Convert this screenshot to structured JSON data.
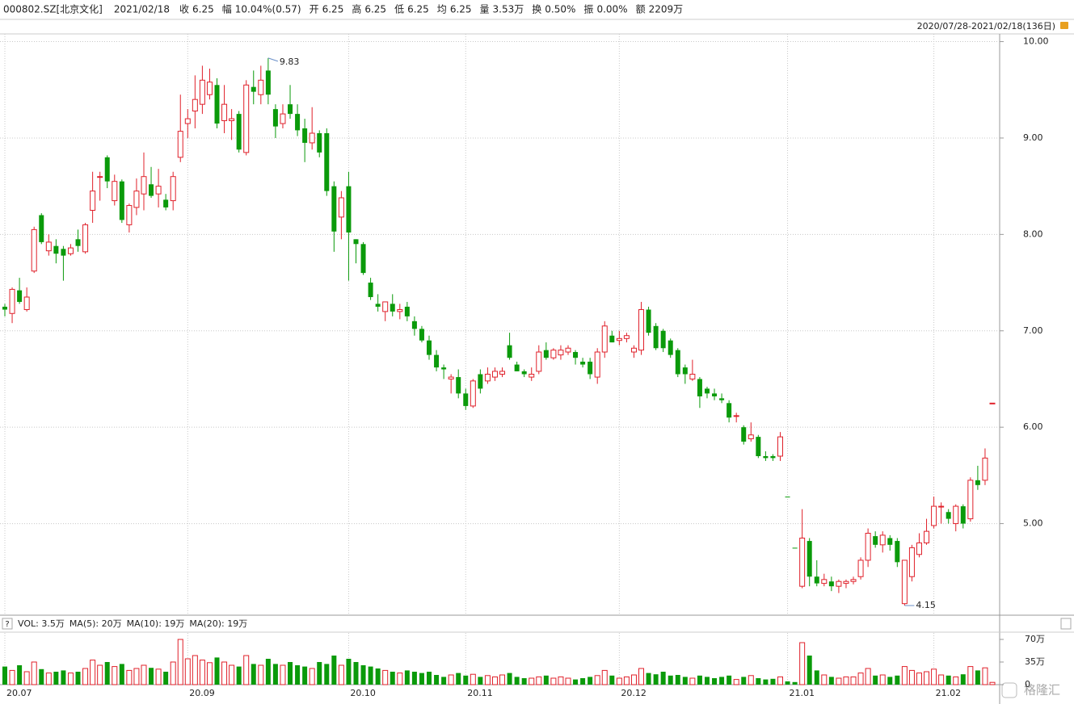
{
  "header": {
    "code": "000802.SZ[北京文化]",
    "date": "2021/02/18",
    "stats": [
      {
        "label": "收",
        "value": "6.25"
      },
      {
        "label": "幅",
        "value": "10.04%(0.57)"
      },
      {
        "label": "开",
        "value": "6.25"
      },
      {
        "label": "高",
        "value": "6.25"
      },
      {
        "label": "低",
        "value": "6.25"
      },
      {
        "label": "均",
        "value": "6.25"
      },
      {
        "label": "量",
        "value": "3.53万"
      },
      {
        "label": "换",
        "value": "0.50%"
      },
      {
        "label": "振",
        "value": "0.00%"
      },
      {
        "label": "额",
        "value": "2209万"
      }
    ],
    "range": "2020/07/28-2021/02/18(136日)",
    "watermark": "格隆汇"
  },
  "chart_data": {
    "type": "candlestick",
    "up_color": "#e0202a",
    "down_color": "#0a9a0a",
    "grid": true,
    "categories": [
      "20.07",
      null,
      null,
      null,
      null,
      null,
      null,
      null,
      null,
      null,
      null,
      null,
      null,
      null,
      null,
      null,
      null,
      null,
      null,
      null,
      null,
      null,
      null,
      null,
      null,
      "20.09",
      null,
      null,
      null,
      null,
      null,
      null,
      null,
      null,
      null,
      null,
      null,
      null,
      null,
      null,
      null,
      null,
      null,
      null,
      null,
      null,
      null,
      "20.10",
      null,
      null,
      null,
      null,
      null,
      null,
      null,
      null,
      null,
      null,
      null,
      null,
      null,
      null,
      null,
      "20.11",
      null,
      null,
      null,
      null,
      null,
      null,
      null,
      null,
      null,
      null,
      null,
      null,
      null,
      null,
      null,
      null,
      null,
      null,
      null,
      null,
      "20.12",
      null,
      null,
      null,
      null,
      null,
      null,
      null,
      null,
      null,
      null,
      null,
      null,
      null,
      null,
      null,
      null,
      null,
      null,
      null,
      null,
      null,
      null,
      "21.01",
      null,
      null,
      null,
      null,
      null,
      null,
      null,
      null,
      null,
      null,
      null,
      null,
      null,
      null,
      null,
      null,
      null,
      null,
      null,
      "21.02",
      null,
      null,
      null,
      null,
      null,
      null,
      null,
      null
    ],
    "open": [
      7.25,
      7.18,
      7.42,
      7.22,
      7.62,
      8.2,
      7.83,
      7.88,
      7.85,
      7.8,
      7.95,
      7.82,
      8.25,
      8.6,
      8.8,
      8.35,
      8.55,
      8.1,
      8.28,
      8.42,
      8.52,
      8.42,
      8.36,
      8.35,
      8.8,
      9.15,
      9.28,
      9.35,
      9.45,
      9.55,
      9.18,
      9.18,
      9.25,
      8.85,
      9.53,
      9.45,
      9.7,
      9.3,
      9.15,
      9.35,
      9.25,
      9.1,
      8.95,
      9.05,
      9.05,
      8.5,
      8.18,
      8.5,
      7.95,
      7.9,
      7.5,
      7.28,
      7.2,
      7.28,
      7.2,
      7.25,
      7.1,
      7.02,
      6.9,
      6.75,
      6.62,
      6.5,
      6.52,
      6.35,
      6.22,
      6.55,
      6.48,
      6.52,
      6.55,
      6.85,
      6.65,
      6.58,
      6.52,
      6.58,
      6.8,
      6.72,
      6.75,
      6.78,
      6.78,
      6.68,
      6.68,
      6.52,
      6.78,
      6.95,
      6.9,
      6.92,
      6.78,
      6.8,
      7.22,
      7.05,
      7.0,
      6.9,
      6.8,
      6.62,
      6.5,
      6.5,
      6.4,
      6.35,
      6.3,
      6.25,
      6.12,
      6.0,
      5.88,
      5.9,
      5.7,
      5.7,
      5.7,
      5.28,
      4.75,
      4.35,
      4.82,
      4.45,
      4.38,
      4.4,
      4.35,
      4.38,
      4.4,
      4.45,
      4.62,
      4.87,
      4.78,
      4.85,
      4.82,
      4.17,
      4.45,
      4.68,
      4.8,
      4.98,
      5.18,
      5.12,
      5.0,
      5.18,
      5.05,
      5.45,
      5.45,
      6.25
    ],
    "high": [
      7.28,
      7.45,
      7.55,
      7.45,
      8.08,
      8.22,
      8.0,
      7.95,
      7.88,
      7.9,
      8.05,
      8.12,
      8.65,
      8.65,
      8.82,
      8.62,
      8.57,
      8.32,
      8.58,
      8.85,
      8.7,
      8.68,
      8.42,
      8.65,
      9.45,
      9.3,
      9.65,
      9.75,
      9.72,
      9.62,
      9.55,
      9.3,
      9.28,
      9.6,
      9.7,
      9.75,
      9.83,
      9.35,
      9.35,
      9.55,
      9.35,
      9.2,
      9.32,
      9.08,
      9.1,
      8.55,
      8.45,
      8.65,
      7.95,
      7.92,
      7.55,
      7.38,
      7.3,
      7.38,
      7.28,
      7.3,
      7.15,
      7.05,
      6.95,
      6.8,
      6.65,
      6.55,
      6.6,
      6.4,
      6.5,
      6.6,
      6.62,
      6.62,
      6.62,
      6.98,
      6.68,
      6.6,
      6.62,
      6.85,
      6.88,
      6.82,
      6.85,
      6.85,
      6.8,
      6.72,
      6.72,
      6.82,
      7.1,
      7.0,
      7.0,
      6.98,
      6.85,
      7.3,
      7.25,
      7.08,
      7.02,
      6.92,
      6.82,
      6.65,
      6.7,
      6.52,
      6.42,
      6.4,
      6.35,
      6.28,
      6.15,
      6.02,
      6.05,
      5.92,
      5.75,
      5.72,
      5.95,
      5.28,
      4.75,
      5.15,
      4.85,
      4.62,
      4.48,
      4.45,
      4.42,
      4.42,
      4.45,
      4.65,
      4.95,
      4.92,
      4.92,
      4.88,
      4.85,
      4.62,
      4.78,
      4.9,
      5.05,
      5.28,
      5.22,
      5.15,
      5.2,
      5.2,
      5.48,
      5.6,
      5.78,
      6.25
    ],
    "low": [
      7.15,
      7.08,
      7.28,
      7.2,
      7.6,
      7.9,
      7.78,
      7.7,
      7.52,
      7.78,
      7.82,
      7.8,
      8.12,
      8.35,
      8.48,
      8.3,
      8.12,
      8.02,
      8.2,
      8.25,
      8.38,
      8.28,
      8.25,
      8.25,
      8.75,
      9.0,
      9.1,
      9.25,
      9.4,
      9.1,
      9.05,
      8.98,
      8.85,
      8.82,
      9.35,
      9.35,
      9.35,
      9.0,
      9.1,
      9.2,
      9.02,
      8.75,
      8.88,
      8.8,
      8.4,
      7.82,
      7.95,
      7.52,
      7.7,
      7.58,
      7.32,
      7.2,
      7.1,
      7.15,
      7.12,
      7.1,
      6.95,
      6.88,
      6.7,
      6.58,
      6.5,
      6.35,
      6.3,
      6.18,
      6.2,
      6.35,
      6.45,
      6.48,
      6.52,
      6.7,
      6.58,
      6.52,
      6.48,
      6.55,
      6.7,
      6.7,
      6.7,
      6.75,
      6.65,
      6.62,
      6.5,
      6.45,
      6.72,
      6.88,
      6.85,
      6.88,
      6.72,
      6.75,
      6.95,
      6.8,
      6.78,
      6.72,
      6.52,
      6.45,
      6.48,
      6.2,
      6.3,
      6.28,
      6.25,
      6.05,
      6.05,
      5.82,
      5.85,
      5.68,
      5.65,
      5.65,
      5.65,
      5.28,
      4.75,
      4.33,
      4.35,
      4.35,
      4.35,
      4.3,
      4.28,
      4.33,
      4.37,
      4.42,
      4.55,
      4.75,
      4.7,
      4.72,
      4.55,
      4.15,
      4.4,
      4.65,
      4.78,
      4.95,
      5.0,
      5.0,
      4.92,
      4.95,
      5.02,
      5.35,
      5.4,
      6.25
    ],
    "close": [
      7.22,
      7.43,
      7.3,
      7.35,
      8.05,
      7.92,
      7.92,
      7.8,
      7.78,
      7.86,
      7.88,
      8.1,
      8.45,
      8.6,
      8.55,
      8.55,
      8.15,
      8.3,
      8.45,
      8.6,
      8.4,
      8.5,
      8.28,
      8.6,
      9.07,
      9.2,
      9.4,
      9.6,
      9.58,
      9.15,
      9.35,
      9.2,
      8.88,
      9.55,
      9.48,
      9.6,
      9.45,
      9.12,
      9.25,
      9.25,
      9.08,
      8.95,
      9.05,
      8.85,
      8.45,
      8.03,
      8.38,
      8.02,
      7.9,
      7.6,
      7.35,
      7.25,
      7.3,
      7.2,
      7.22,
      7.15,
      7.02,
      6.9,
      6.75,
      6.62,
      6.6,
      6.52,
      6.35,
      6.22,
      6.48,
      6.4,
      6.55,
      6.58,
      6.58,
      6.72,
      6.58,
      6.55,
      6.55,
      6.78,
      6.72,
      6.8,
      6.8,
      6.82,
      6.72,
      6.65,
      6.55,
      6.78,
      7.05,
      6.88,
      6.92,
      6.95,
      6.82,
      7.22,
      6.98,
      6.82,
      6.82,
      6.75,
      6.55,
      6.55,
      6.55,
      6.32,
      6.35,
      6.32,
      6.28,
      6.1,
      6.12,
      5.85,
      5.92,
      5.7,
      5.68,
      5.68,
      5.9,
      5.28,
      4.75,
      4.85,
      4.45,
      4.38,
      4.42,
      4.35,
      4.4,
      4.4,
      4.42,
      4.62,
      4.9,
      4.78,
      4.88,
      4.78,
      4.6,
      4.62,
      4.75,
      4.8,
      4.92,
      5.18,
      5.18,
      5.05,
      5.18,
      5.0,
      5.45,
      5.4,
      5.68,
      6.25
    ],
    "ylim": [
      4.05,
      10.08
    ],
    "yticks": [
      {
        "value": 5,
        "label": "5.00"
      },
      {
        "value": 6,
        "label": "6.00"
      },
      {
        "value": 7,
        "label": "7.00"
      },
      {
        "value": 8,
        "label": "8.00"
      },
      {
        "value": 9,
        "label": "9.00"
      },
      {
        "value": 10,
        "label": "10.00"
      }
    ],
    "annotations": [
      {
        "index": 36,
        "value": 9.83
      },
      {
        "index": 123,
        "value": 4.15
      }
    ],
    "volume": [
      28,
      22,
      30,
      20,
      35,
      24,
      18,
      20,
      22,
      18,
      20,
      25,
      38,
      30,
      35,
      28,
      32,
      22,
      25,
      30,
      26,
      24,
      20,
      35,
      70,
      40,
      45,
      38,
      34,
      42,
      35,
      30,
      28,
      45,
      32,
      30,
      40,
      32,
      30,
      35,
      30,
      28,
      25,
      35,
      32,
      45,
      30,
      40,
      35,
      30,
      28,
      25,
      22,
      20,
      18,
      22,
      20,
      18,
      20,
      15,
      12,
      15,
      18,
      14,
      16,
      12,
      14,
      12,
      15,
      18,
      12,
      10,
      10,
      12,
      14,
      10,
      12,
      10,
      8,
      10,
      12,
      14,
      22,
      14,
      10,
      12,
      15,
      25,
      18,
      16,
      20,
      14,
      15,
      12,
      10,
      14,
      12,
      10,
      12,
      14,
      8,
      12,
      14,
      10,
      8,
      9,
      12,
      5,
      4,
      65,
      45,
      22,
      15,
      12,
      10,
      12,
      12,
      18,
      25,
      14,
      15,
      12,
      14,
      28,
      22,
      18,
      20,
      24,
      15,
      14,
      12,
      16,
      28,
      22,
      26,
      3.5
    ],
    "volume_ylim": [
      0,
      80
    ],
    "volume_yticks": [
      {
        "value": 0,
        "label": "0"
      },
      {
        "value": 35,
        "label": "35万"
      },
      {
        "value": 70,
        "label": "70万"
      }
    ],
    "volume_legend": [
      {
        "text": "VOL: 3.5万",
        "color": "#222222"
      },
      {
        "text": "MA(5): 20万",
        "color": "#222222"
      },
      {
        "text": "MA(10): 19万",
        "color": "#c0262d"
      },
      {
        "text": "MA(20): 19万",
        "color": "#2a3cc8"
      }
    ]
  }
}
